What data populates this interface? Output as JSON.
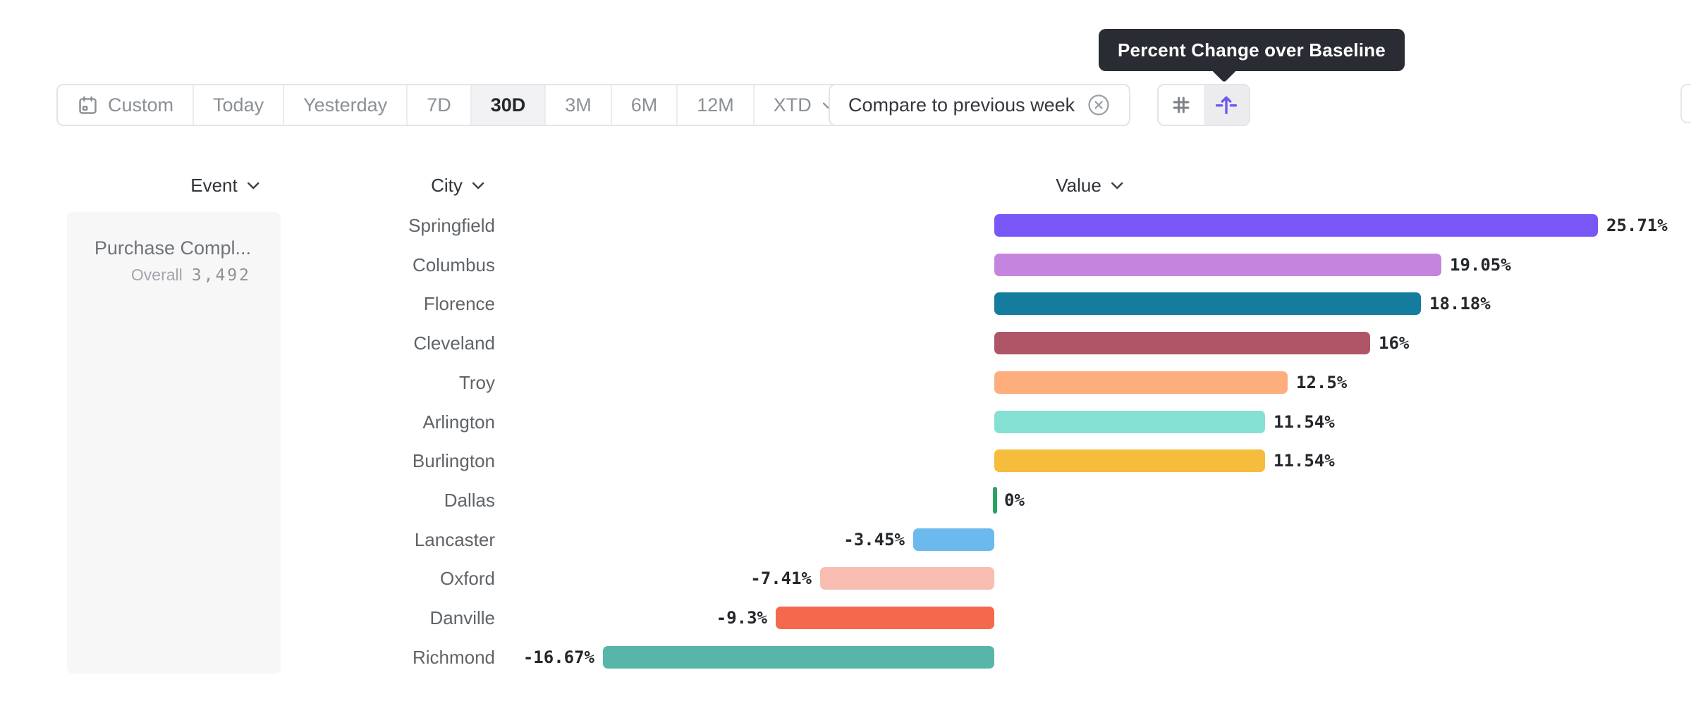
{
  "tooltip": {
    "text": "Percent Change over Baseline",
    "bg_color": "#2a2c34"
  },
  "toolbar": {
    "date_ranges": [
      {
        "label": "Custom",
        "icon": "calendar-icon",
        "selected": false
      },
      {
        "label": "Today",
        "selected": false
      },
      {
        "label": "Yesterday",
        "selected": false
      },
      {
        "label": "7D",
        "selected": false
      },
      {
        "label": "30D",
        "selected": true
      },
      {
        "label": "3M",
        "selected": false
      },
      {
        "label": "6M",
        "selected": false
      },
      {
        "label": "12M",
        "selected": false
      },
      {
        "label": "XTD",
        "has_chevron": true,
        "selected": false
      }
    ],
    "compare_chip": {
      "label": "Compare to previous week",
      "remove_icon": "x-circle-icon"
    },
    "view_toggle": [
      {
        "name": "number-view",
        "icon": "hash-icon",
        "selected": false,
        "color": "#7d8187"
      },
      {
        "name": "percent-baseline-view",
        "icon": "percent-baseline-icon",
        "selected": true,
        "color": "#6c5bf0"
      }
    ]
  },
  "table": {
    "columns": [
      {
        "label": "Event"
      },
      {
        "label": "City"
      },
      {
        "label": "Value"
      }
    ],
    "event_cell": {
      "name": "Purchase Compl...",
      "overall_label": "Overall",
      "overall_value": "3,492"
    }
  },
  "chart_data": {
    "type": "bar",
    "orientation": "horizontal",
    "title": "Percent Change over Baseline",
    "xlabel": "Value",
    "ylabel": "City",
    "value_format": "percent",
    "zero_baseline": true,
    "xlim": [
      -16.67,
      25.71
    ],
    "categories": [
      "Springfield",
      "Columbus",
      "Florence",
      "Cleveland",
      "Troy",
      "Arlington",
      "Burlington",
      "Dallas",
      "Lancaster",
      "Oxford",
      "Danville",
      "Richmond"
    ],
    "values": [
      25.71,
      19.05,
      18.18,
      16,
      12.5,
      11.54,
      11.54,
      0,
      -3.45,
      -7.41,
      -9.3,
      -16.67
    ],
    "labels": [
      "25.71%",
      "19.05%",
      "18.18%",
      "16%",
      "12.5%",
      "11.54%",
      "11.54%",
      "0%",
      "-3.45%",
      "-7.41%",
      "-9.3%",
      "-16.67%"
    ],
    "colors": [
      "#7957f7",
      "#c584de",
      "#147d9e",
      "#b05468",
      "#fdae7c",
      "#85e0d4",
      "#f6bc3c",
      "#2aa263",
      "#6cb9ee",
      "#f9bcb0",
      "#f4694c",
      "#57b6a8"
    ]
  }
}
